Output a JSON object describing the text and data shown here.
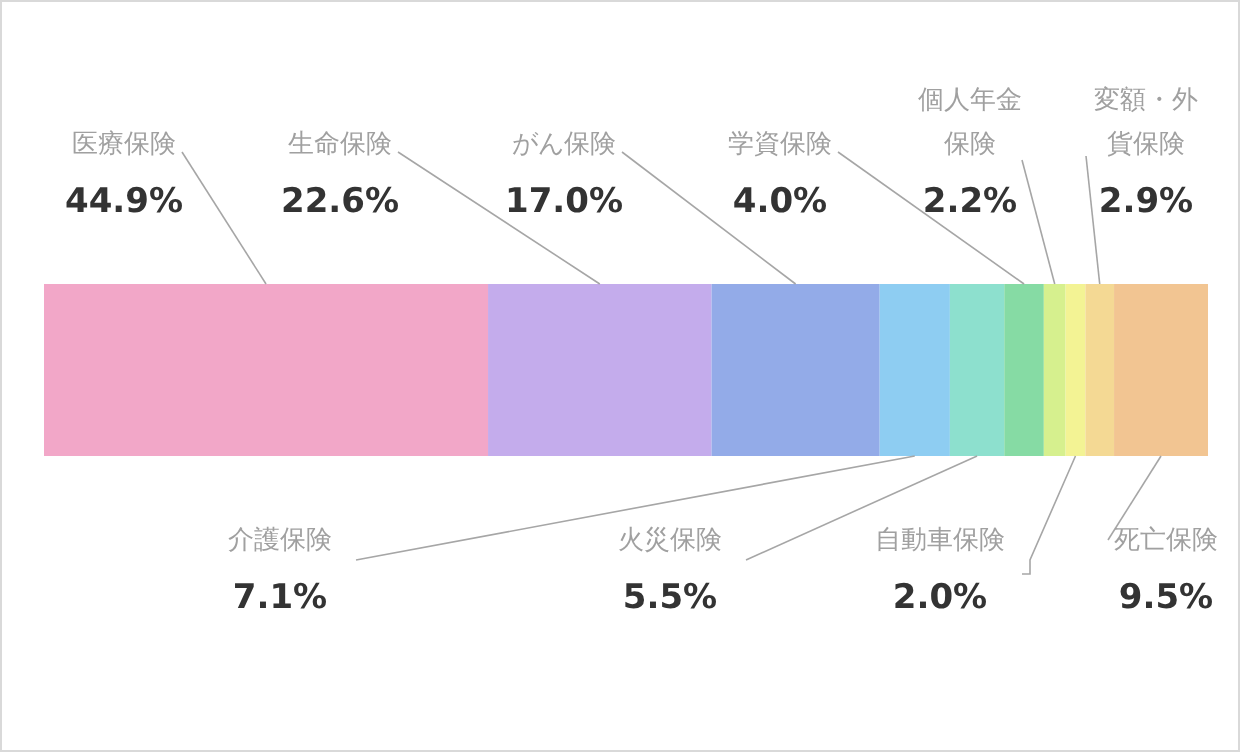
{
  "chart_data": {
    "type": "bar",
    "orientation": "horizontal",
    "stacked": true,
    "categories": [
      null
    ],
    "series": [
      {
        "name": "医療保険",
        "color": "#f2a7c8",
        "values": [
          44.9
        ],
        "value_labels": [
          "44.9%"
        ]
      },
      {
        "name": "生命保険",
        "color": "#c4acec",
        "values": [
          22.6
        ],
        "value_labels": [
          "22.6%"
        ]
      },
      {
        "name": "がん保険",
        "color": "#93abe8",
        "values": [
          17.0
        ],
        "value_labels": [
          "17.0%"
        ]
      },
      {
        "name": "介護保険",
        "color": "#8ecdf2",
        "values": [
          7.1
        ],
        "value_labels": [
          "7.1%"
        ]
      },
      {
        "name": "火災保険",
        "color": "#8de0ce",
        "values": [
          5.5
        ],
        "value_labels": [
          "5.5%"
        ]
      },
      {
        "name": "学資保険",
        "color": "#86dba4",
        "values": [
          4.0
        ],
        "value_labels": [
          "4.0%"
        ]
      },
      {
        "name": "個人年金保険",
        "color": "#d6f08e",
        "values": [
          2.2
        ],
        "value_labels": [
          "2.2%"
        ]
      },
      {
        "name": "自動車保険",
        "color": "#f3f394",
        "values": [
          2.0
        ],
        "value_labels": [
          "2.0%"
        ]
      },
      {
        "name": "変額・外貨保険",
        "color": "#f4d994",
        "values": [
          2.9
        ],
        "value_labels": [
          "2.9%"
        ]
      },
      {
        "name": "死亡保険",
        "color": "#f2c592",
        "values": [
          9.5
        ],
        "value_labels": [
          "9.5%"
        ]
      }
    ]
  }
}
